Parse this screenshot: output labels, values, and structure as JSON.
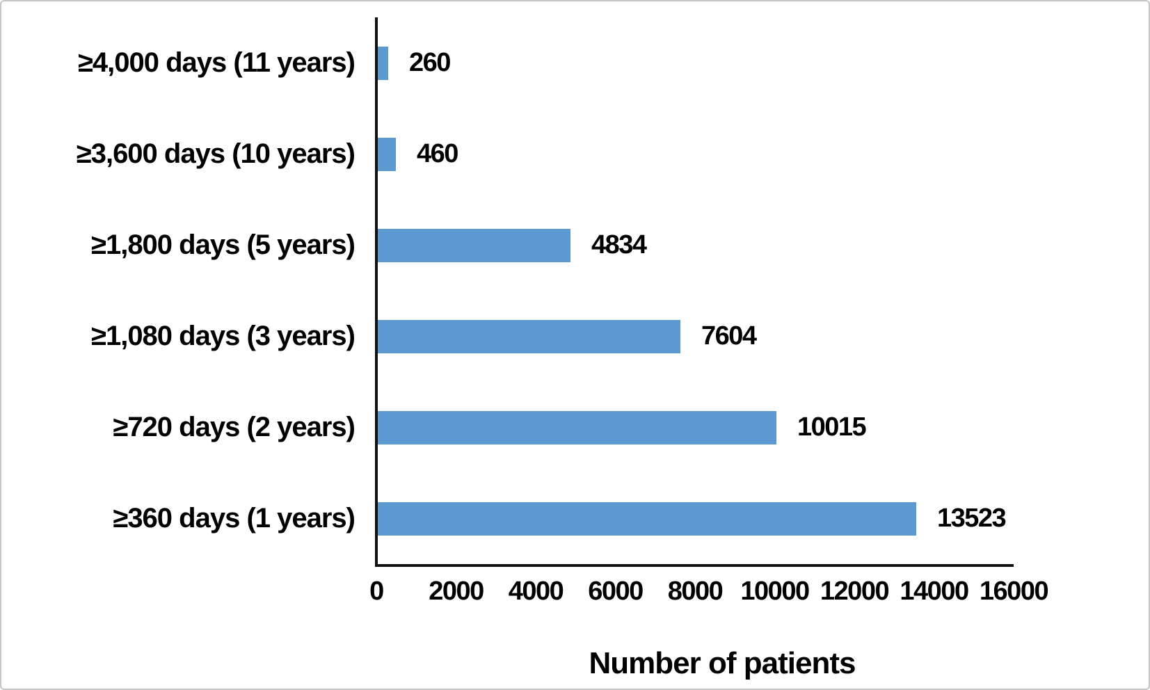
{
  "chart_data": {
    "type": "bar",
    "orientation": "horizontal",
    "title": "",
    "xlabel": "Number of patients",
    "ylabel": "",
    "categories": [
      "≥4,000 days (11 years)",
      "≥3,600 days (10 years)",
      "≥1,800 days (5 years)",
      "≥1,080 days (3 years)",
      "≥720 days (2 years)",
      "≥360 days (1 years)"
    ],
    "values": [
      260,
      460,
      4834,
      7604,
      10015,
      13523
    ],
    "value_labels": [
      "260",
      "460",
      "4834",
      "7604",
      "10015",
      "13523"
    ],
    "xlim": [
      0,
      16000
    ],
    "xticks": [
      0,
      2000,
      4000,
      6000,
      8000,
      10000,
      12000,
      14000,
      16000
    ],
    "xtick_labels": [
      "0",
      "2000",
      "4000",
      "6000",
      "8000",
      "10000",
      "12000",
      "14000",
      "16000"
    ],
    "grid": false,
    "legend": null,
    "bar_color": "#5B99D0",
    "axis_color": "#111111",
    "text_color": "#000000",
    "background_color": "#ffffff"
  }
}
